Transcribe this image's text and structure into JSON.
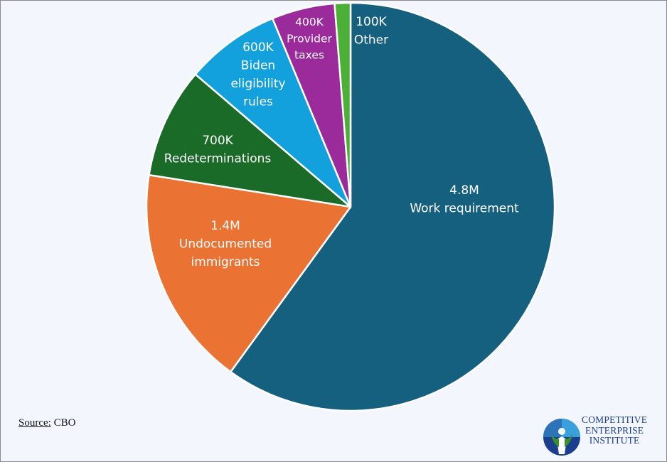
{
  "chart_data": {
    "type": "pie",
    "title": "",
    "slices": [
      {
        "value_label": "4.8M",
        "name": "Work requirement",
        "value": 4.8,
        "color": "#16607f"
      },
      {
        "value_label": "1.4M",
        "name": "Undocumented immigrants",
        "value": 1.4,
        "color": "#ea7233"
      },
      {
        "value_label": "700K",
        "name": "Redeterminations",
        "value": 0.7,
        "color": "#1a6b27"
      },
      {
        "value_label": "600K",
        "name": "Biden eligibility rules",
        "value": 0.6,
        "color": "#12a1dc"
      },
      {
        "value_label": "400K",
        "name": "Provider taxes",
        "value": 0.4,
        "color": "#9b2b9b"
      },
      {
        "value_label": "100K",
        "name": "Other",
        "value": 0.1,
        "color": "#4caf36"
      }
    ],
    "start": "12 o'clock",
    "direction": "clockwise"
  },
  "source": {
    "key": "Source:",
    "value": "CBO"
  },
  "logo": {
    "lines": [
      "COMPETITIVE",
      "ENTERPRISE",
      "INSTITUTE"
    ],
    "icon": "cei-figure-icon",
    "colors": {
      "blue": "#1b3e8f",
      "green": "#3d8f2e",
      "lightblue": "#3aa0dc"
    }
  }
}
